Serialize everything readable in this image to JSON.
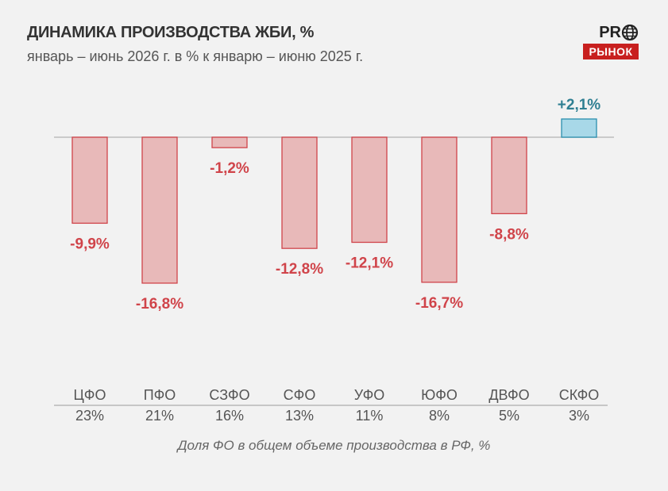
{
  "header": {
    "title": "ДИНАМИКА ПРОИЗВОДСТВА ЖБИ, %",
    "subtitle": "январь – июнь 2026 г. в % к январю – июню 2025 г."
  },
  "logo": {
    "top_text": "PR",
    "top_icon": "globe-icon",
    "bottom_text": "РЫНОК",
    "color": "#c8201f"
  },
  "footnote": "Доля ФО в общем объеме производства в РФ, %",
  "chart_data": {
    "type": "bar",
    "title": "ДИНАМИКА ПРОИЗВОДСТВА ЖБИ, %",
    "subtitle": "январь – июнь 2026 г. в % к январю – июню 2025 г.",
    "categories": [
      "ЦФО",
      "ПФО",
      "СЗФО",
      "СФО",
      "УФО",
      "ЮФО",
      "ДВФО",
      "СКФО"
    ],
    "values": [
      -9.9,
      -16.8,
      -1.2,
      -12.8,
      -12.1,
      -16.7,
      -8.8,
      2.1
    ],
    "value_labels": [
      "-9,9%",
      "-16,8%",
      "-1,2%",
      "-12,8%",
      "-12,1%",
      "-16,7%",
      "-8,8%",
      "+2,1%"
    ],
    "shares": [
      "23%",
      "21%",
      "16%",
      "13%",
      "11%",
      "8%",
      "5%",
      "3%"
    ],
    "share_label": "Доля ФО в общем объеме производства в РФ, %",
    "ylim": [
      -17,
      3
    ],
    "grid": false,
    "colors": {
      "negative_fill": "#e8b9b9",
      "negative_stroke": "#d0444a",
      "negative_text": "#d0444a",
      "positive_fill": "#a8d8e8",
      "positive_stroke": "#2a8fae",
      "positive_text": "#2f7f92",
      "baseline": "#bdbdbd",
      "category_text": "#555555"
    }
  }
}
